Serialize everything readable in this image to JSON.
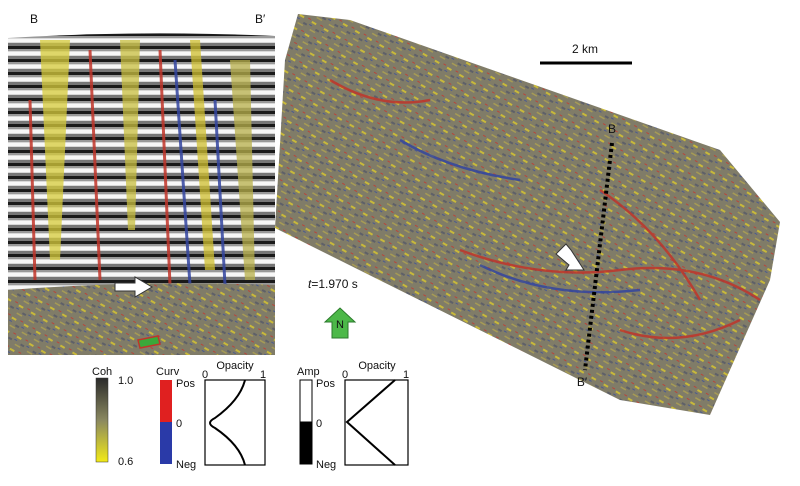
{
  "section": {
    "left_label": "B",
    "right_label": "B′"
  },
  "map": {
    "scale_label": "2 km",
    "line_start_label": "B",
    "line_end_label": "B′",
    "time_label": {
      "variable": "t",
      "value": "=1.970 s"
    },
    "north_label": "N"
  },
  "legend": {
    "coherence": {
      "title": "Coh",
      "max": "1.0",
      "min": "0.6"
    },
    "curvature": {
      "title": "Curv",
      "pos": "Pos",
      "zero": "0",
      "neg": "Neg",
      "opacity": {
        "title": "Opacity",
        "min": "0",
        "max": "1"
      }
    },
    "amplitude": {
      "title": "Amp",
      "pos": "Pos",
      "zero": "0",
      "neg": "Neg",
      "opacity": {
        "title": "Opacity",
        "min": "0",
        "max": "1"
      }
    }
  }
}
